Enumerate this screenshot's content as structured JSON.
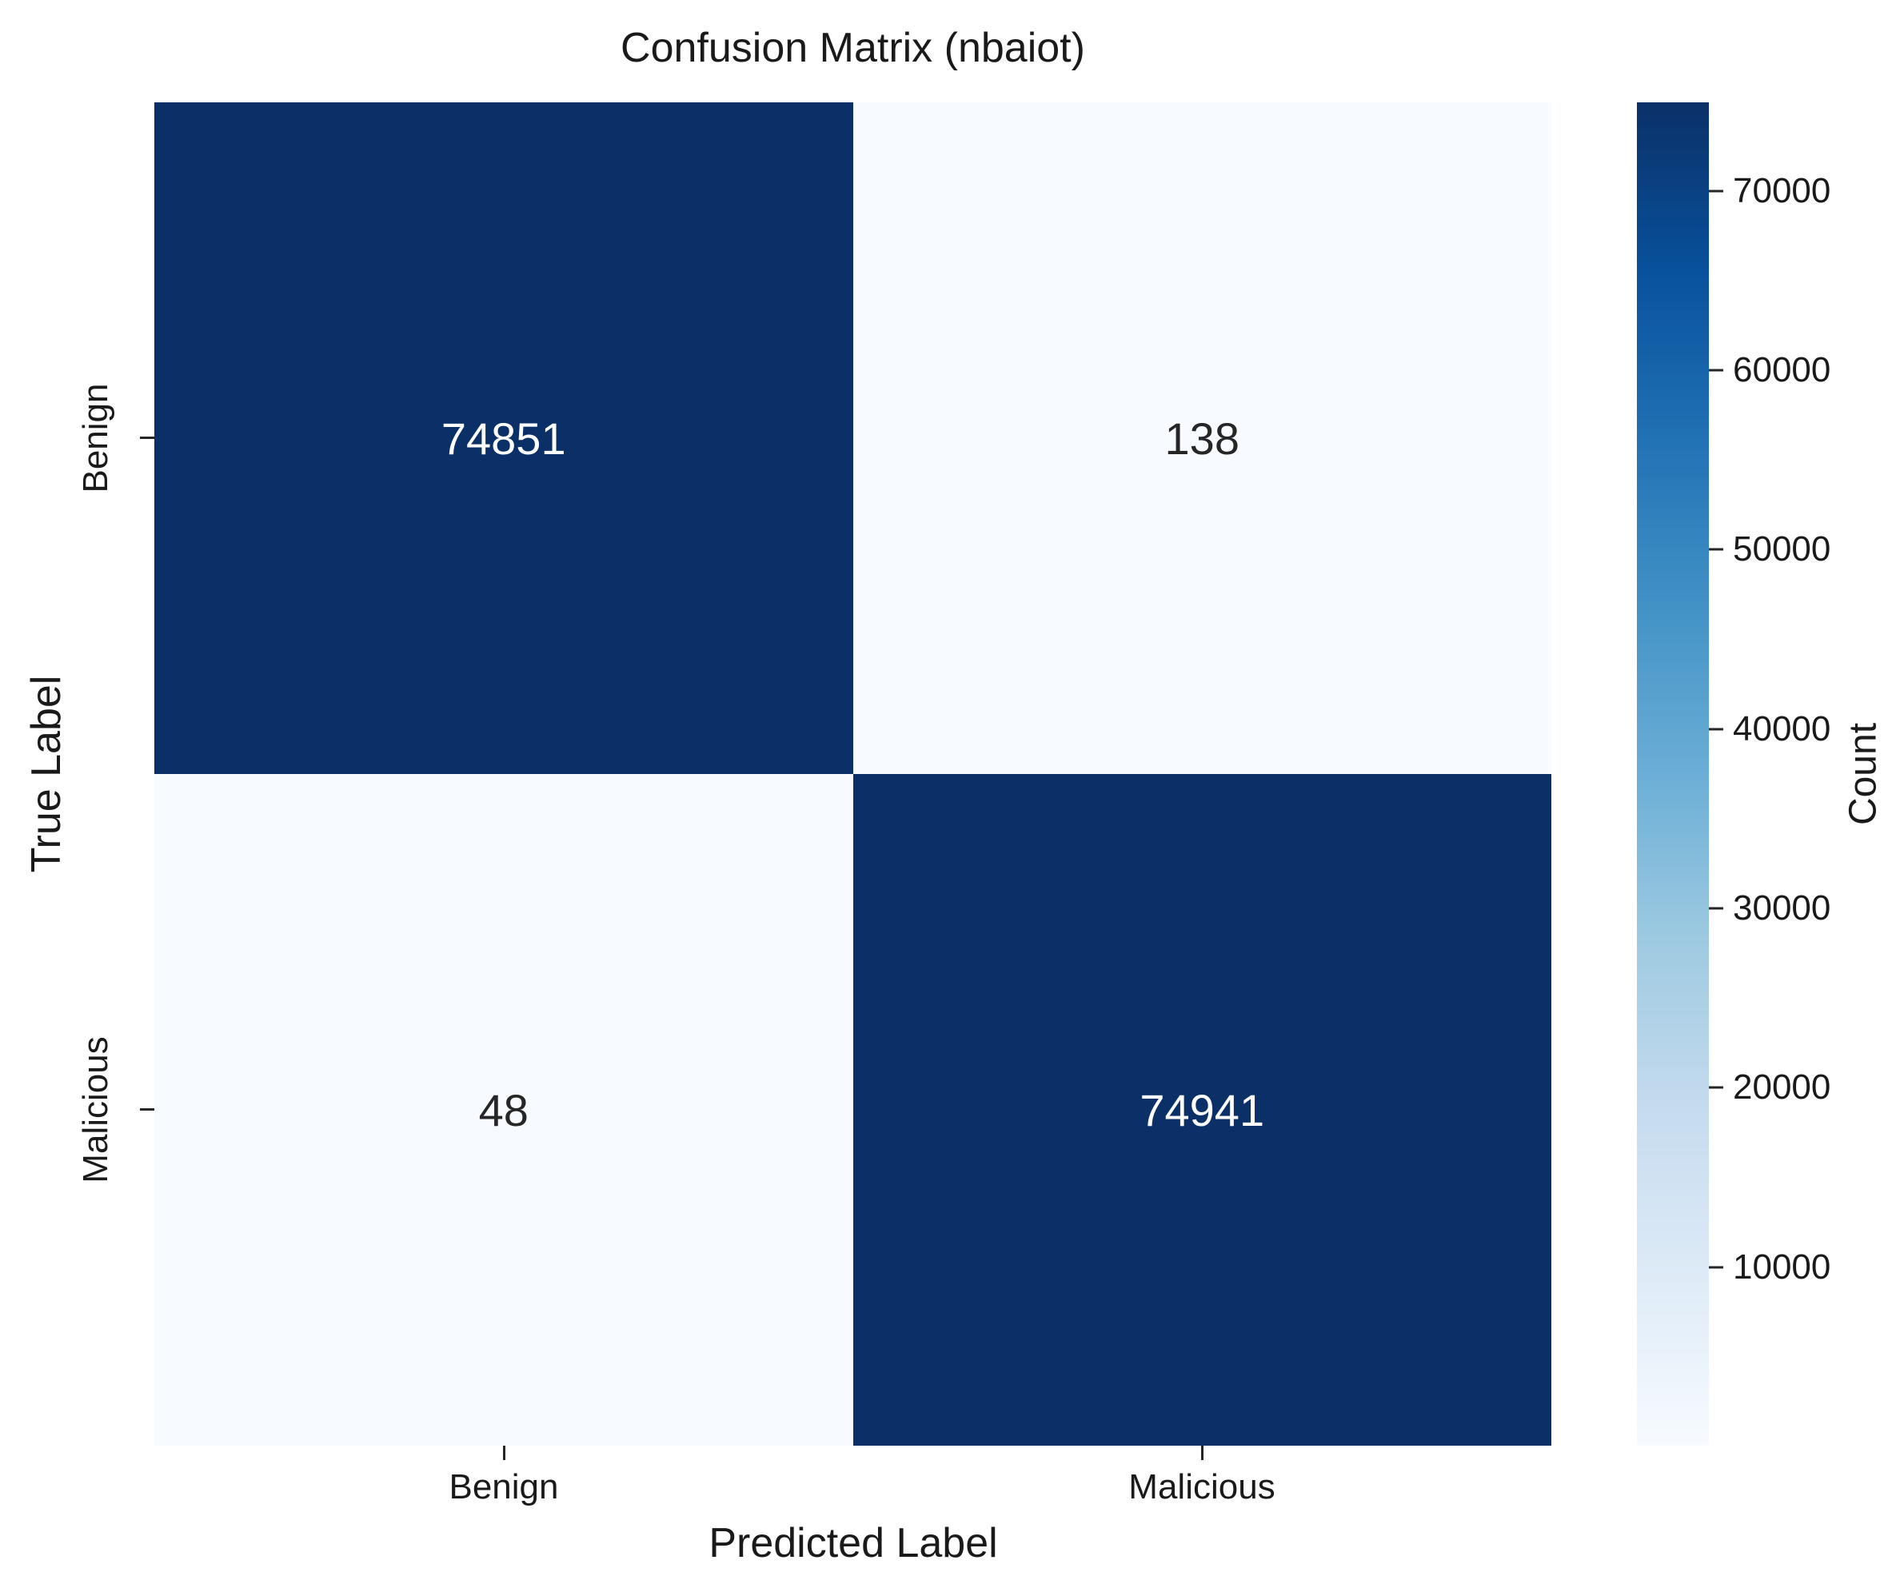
{
  "title": "Confusion Matrix (nbaiot)",
  "chart_data": {
    "type": "heatmap",
    "title": "Confusion Matrix (nbaiot)",
    "xlabel": "Predicted Label",
    "ylabel": "True Label",
    "x_categories": [
      "Benign",
      "Malicious"
    ],
    "y_categories": [
      "Benign",
      "Malicious"
    ],
    "values": [
      [
        74851,
        138
      ],
      [
        48,
        74941
      ]
    ],
    "cells": [
      {
        "row": "Benign",
        "col": "Benign",
        "value": "74851",
        "bg": "#0b3068",
        "fg": "#ffffff"
      },
      {
        "row": "Benign",
        "col": "Malicious",
        "value": "138",
        "bg": "#f7fbff",
        "fg": "#262626"
      },
      {
        "row": "Malicious",
        "col": "Benign",
        "value": "48",
        "bg": "#f7fbff",
        "fg": "#262626"
      },
      {
        "row": "Malicious",
        "col": "Malicious",
        "value": "74941",
        "bg": "#0b3068",
        "fg": "#ffffff"
      }
    ],
    "colorbar": {
      "label": "Count",
      "vmin": 48,
      "vmax": 74941,
      "ticks": [
        70000,
        60000,
        50000,
        40000,
        30000,
        20000,
        10000
      ],
      "colormap": "Blues",
      "gradient_stops": [
        "#f7fbff",
        "#deebf7",
        "#c6dbef",
        "#9ecae1",
        "#6baed6",
        "#4292c6",
        "#2171b5",
        "#08519c",
        "#0b3068"
      ]
    },
    "layout": {
      "grid": false,
      "legend": false,
      "colorbar_position": "right"
    },
    "colors": {
      "cell_high": "#0b3068",
      "cell_low": "#f7fbff",
      "annot_on_dark": "#ffffff",
      "annot_on_light": "#262626",
      "text": "#1a1a1a",
      "background": "#ffffff"
    }
  }
}
